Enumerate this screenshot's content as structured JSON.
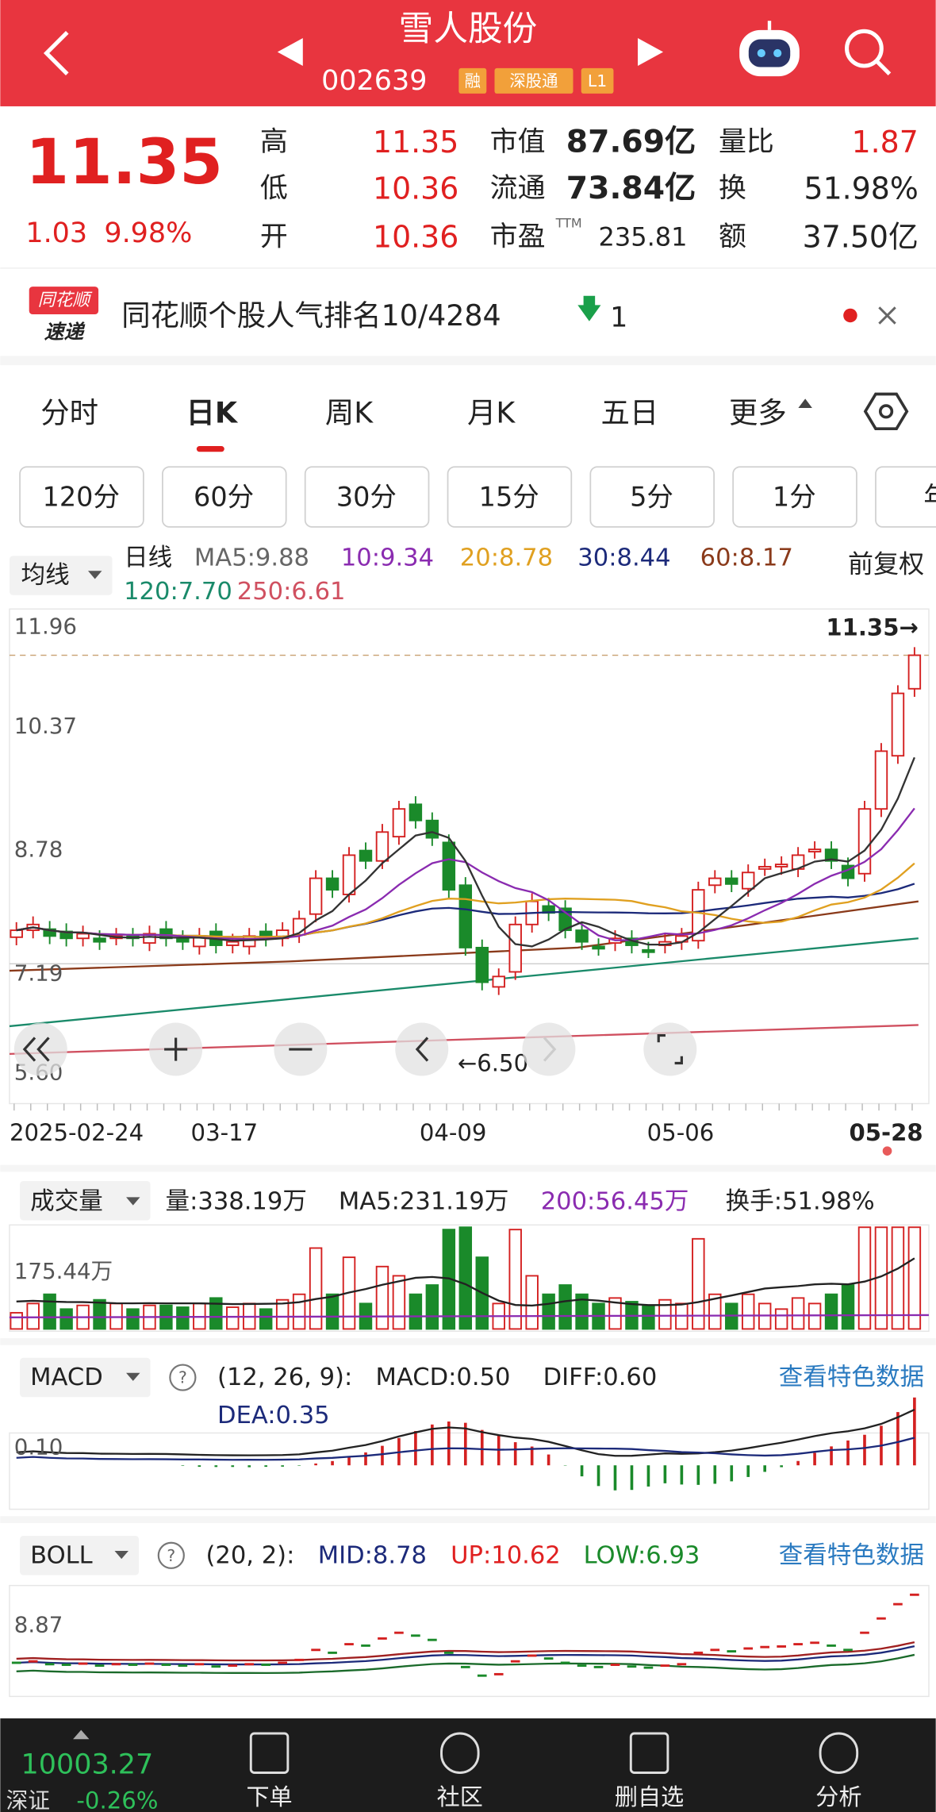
{
  "header": {
    "title": "雪人股份",
    "code": "002639",
    "badges": [
      "融",
      "深股通",
      "L1"
    ]
  },
  "quote": {
    "price": "11.35",
    "change": "1.03",
    "pct": "9.98%",
    "left": [
      {
        "label": "高",
        "value": "11.35"
      },
      {
        "label": "低",
        "value": "10.36"
      },
      {
        "label": "开",
        "value": "10.36"
      }
    ],
    "mid": [
      {
        "label": "市值",
        "value": "87.69亿"
      },
      {
        "label": "流通",
        "value": "73.84亿"
      },
      {
        "label": "市盈",
        "sup": "TTM",
        "value": "235.81"
      }
    ],
    "right": [
      {
        "label": "量比",
        "value": "1.87"
      },
      {
        "label": "换",
        "value": "51.98%"
      },
      {
        "label": "额",
        "value": "37.50亿"
      }
    ]
  },
  "banner": {
    "logo": [
      "同花顺",
      "速递"
    ],
    "text": "同花顺个股人气排名10/4284",
    "rank_change": "1"
  },
  "tabs": [
    "分时",
    "日K",
    "周K",
    "月K",
    "五日",
    "更多"
  ],
  "periods": [
    "120分",
    "60分",
    "30分",
    "15分",
    "5分",
    "1分",
    "年"
  ],
  "ma": {
    "selector": "均线",
    "items": [
      "日线",
      "MA5:9.88",
      "10:9.34",
      "20:8.78",
      "30:8.44",
      "60:8.17",
      "120:7.70",
      "250:6.61"
    ],
    "adjust": "前复权"
  },
  "kline": {
    "yticks": [
      "11.96",
      "10.37",
      "8.78",
      "7.19",
      "5.60"
    ],
    "last": "11.35→",
    "low": "←6.50",
    "dates": [
      "2025-02-24",
      "03-17",
      "04-09",
      "05-06",
      "05-28"
    ]
  },
  "volume": {
    "selector": "成交量",
    "items": [
      "量:338.19万",
      "MA5:231.19万",
      "200:56.45万",
      "换手:51.98%"
    ],
    "ytick": "175.44万"
  },
  "macd": {
    "selector": "MACD",
    "help": "?",
    "params": "(12, 26, 9):",
    "items": [
      "MACD:0.50",
      "DIFF:0.60",
      "DEA:0.35"
    ],
    "link": "查看特色数据",
    "ytick": "0.10"
  },
  "boll": {
    "selector": "BOLL",
    "help": "?",
    "params": "(20, 2):",
    "items": [
      "MID:8.78",
      "UP:10.62",
      "LOW:6.93"
    ],
    "link": "查看特色数据",
    "ytick": "8.87"
  },
  "footer": {
    "index": "10003.27",
    "market": "深证",
    "change": "-0.26%",
    "tabs": [
      "下单",
      "社区",
      "删自选",
      "分析"
    ]
  }
}
